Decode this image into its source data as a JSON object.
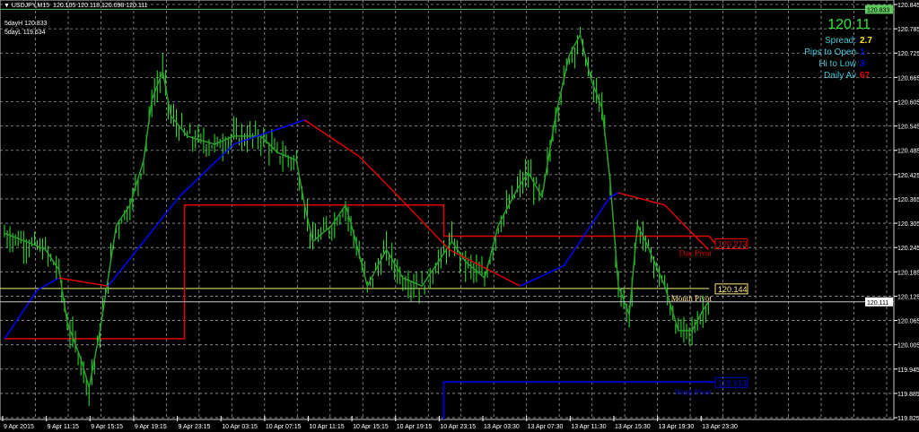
{
  "header": {
    "symbol": "USDJPY,M15",
    "ohlc": "120.105 120.118 120.098 120.111",
    "menu_icon": "triangle-down-icon"
  },
  "labels": {
    "five_day_high": "5dayH 120.833",
    "five_day_low": "5dayL 119.634"
  },
  "info_panel": {
    "price": "120.11",
    "spread_label": "Spread:",
    "spread_value": "2.7",
    "pips_label": "Pips to Open",
    "pips_value": "1",
    "hilo_label": "Hi to Low",
    "hilo_value": "3",
    "daily_label": "Daily Av",
    "daily_value": "67"
  },
  "colors": {
    "bg": "#000000",
    "candle": "#32e632",
    "ma_up": "#0000ff",
    "ma_down": "#e00000",
    "day_pivot": "#e00000",
    "month_pivot": "#ffe680",
    "week_pivot": "#0000c8",
    "five_day_high": "#5fc85f"
  },
  "chart_data": {
    "type": "candlestick",
    "timeframe": "M15",
    "ylim": [
      119.825,
      120.845
    ],
    "y_ticks": [
      "120.845",
      "120.785",
      "120.725",
      "120.665",
      "120.605",
      "120.545",
      "120.485",
      "120.425",
      "120.365",
      "120.305",
      "120.245",
      "120.185",
      "120.125",
      "120.065",
      "120.005",
      "119.945",
      "119.885",
      "119.825"
    ],
    "x_ticks": [
      "9 Apr 2015",
      "9 Apr 11:15",
      "9 Apr 15:15",
      "9 Apr 19:15",
      "9 Apr 23:15",
      "10 Apr 03:15",
      "10 Apr 07:15",
      "10 Apr 11:15",
      "10 Apr 15:15",
      "10 Apr 19:15",
      "10 Apr 23:15",
      "13 Apr 03:30",
      "13 Apr 07:30",
      "13 Apr 11:30",
      "13 Apr 15:30",
      "13 Apr 19:30",
      "13 Apr 23:30"
    ],
    "grid": true,
    "price_path": [
      [
        0,
        120.28
      ],
      [
        8,
        120.26
      ],
      [
        15,
        120.24
      ],
      [
        20,
        120.19
      ],
      [
        23,
        120.06
      ],
      [
        28,
        119.97
      ],
      [
        31,
        119.9
      ],
      [
        35,
        120.04
      ],
      [
        38,
        120.17
      ],
      [
        41,
        120.3
      ],
      [
        46,
        120.35
      ],
      [
        51,
        120.46
      ],
      [
        54,
        120.61
      ],
      [
        58,
        120.68
      ],
      [
        61,
        120.57
      ],
      [
        67,
        120.52
      ],
      [
        77,
        120.5
      ],
      [
        84,
        120.52
      ],
      [
        94,
        120.52
      ],
      [
        100,
        120.48
      ],
      [
        107,
        120.46
      ],
      [
        110,
        120.35
      ],
      [
        113,
        120.26
      ],
      [
        120,
        120.3
      ],
      [
        125,
        120.35
      ],
      [
        128,
        120.28
      ],
      [
        133,
        120.15
      ],
      [
        140,
        120.24
      ],
      [
        146,
        120.17
      ],
      [
        153,
        120.15
      ],
      [
        159,
        120.21
      ],
      [
        164,
        120.26
      ],
      [
        169,
        120.21
      ],
      [
        176,
        120.17
      ],
      [
        181,
        120.3
      ],
      [
        188,
        120.39
      ],
      [
        192,
        120.43
      ],
      [
        197,
        120.37
      ],
      [
        202,
        120.57
      ],
      [
        207,
        120.72
      ],
      [
        211,
        120.77
      ],
      [
        215,
        120.66
      ],
      [
        219,
        120.59
      ],
      [
        222,
        120.41
      ],
      [
        225,
        120.15
      ],
      [
        229,
        120.08
      ],
      [
        232,
        120.3
      ],
      [
        235,
        120.26
      ],
      [
        242,
        120.15
      ],
      [
        247,
        120.04
      ],
      [
        252,
        120.04
      ],
      [
        256,
        120.09
      ],
      [
        258,
        120.111
      ]
    ],
    "moving_average": [
      [
        0,
        120.02
      ],
      [
        12,
        120.14
      ],
      [
        20,
        120.17
      ],
      [
        38,
        120.15
      ],
      [
        64,
        120.37
      ],
      [
        84,
        120.5
      ],
      [
        110,
        120.56
      ],
      [
        130,
        120.47
      ],
      [
        146,
        120.36
      ],
      [
        163,
        120.24
      ],
      [
        189,
        120.15
      ],
      [
        205,
        120.2
      ],
      [
        222,
        120.37
      ],
      [
        225,
        120.38
      ],
      [
        242,
        120.35
      ],
      [
        258,
        120.24
      ]
    ],
    "current_price": "120.111",
    "five_day_high": "120.833",
    "day_pivot": {
      "label": "Day Pivot",
      "value": "120.273",
      "steps": [
        [
          0,
          120.02
        ],
        [
          66,
          120.35
        ],
        [
          161,
          120.273
        ]
      ]
    },
    "month_pivot": {
      "label": "Month Pivot",
      "value": "120.144"
    },
    "week_pivot": {
      "label": "Week Pivot",
      "value": "119.913",
      "start": 161
    }
  }
}
